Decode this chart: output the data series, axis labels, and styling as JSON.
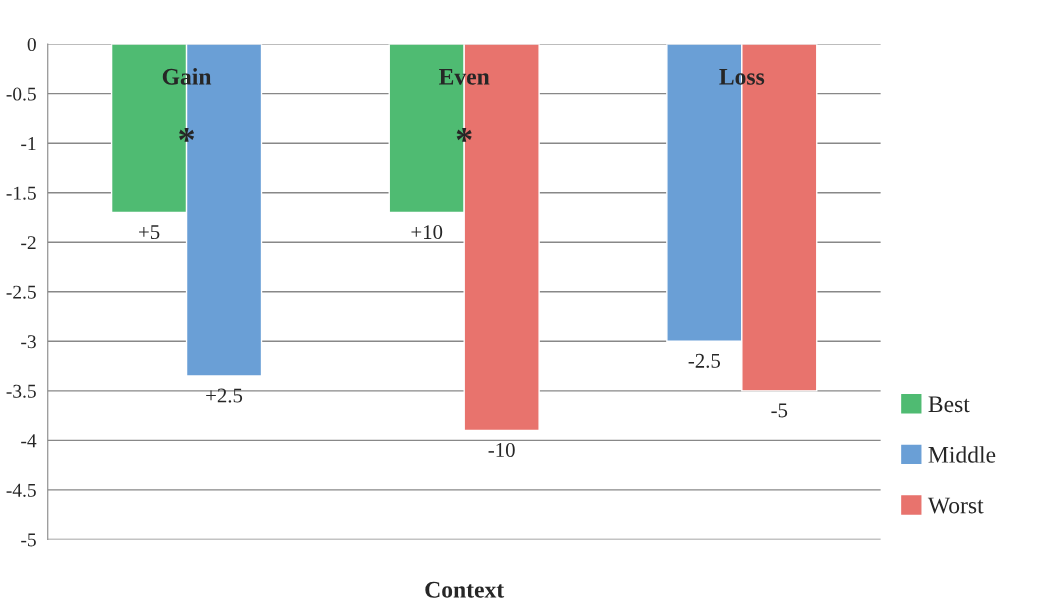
{
  "chart_data": {
    "type": "bar",
    "xlabel": "Context",
    "categories": [
      "Gain",
      "Even",
      "Loss"
    ],
    "series": [
      {
        "name": "Best",
        "color": "#4fbb72",
        "values": [
          -1.7,
          -1.7,
          null
        ]
      },
      {
        "name": "Middle",
        "color": "#6a9fd6",
        "values": [
          -3.35,
          null,
          -3.0
        ]
      },
      {
        "name": "Worst",
        "color": "#e8736d",
        "values": [
          null,
          -3.9,
          -3.5
        ]
      }
    ],
    "ylim": [
      -5,
      0
    ],
    "yticks": [
      0,
      -0.5,
      -1,
      -1.5,
      -2,
      -2.5,
      -3,
      -3.5,
      -4,
      -4.5,
      -5
    ],
    "grid": "y",
    "legend": "bottom right",
    "annotations": [
      {
        "text": "*",
        "x": "Gain",
        "y": -1
      },
      {
        "text": "*",
        "x": "Even",
        "y": -1
      },
      {
        "text": "+5",
        "x": "Gain",
        "y": -1.7
      },
      {
        "text": "+2.5",
        "x": "Gain",
        "y": -3.35
      },
      {
        "text": "+10",
        "x": "Even",
        "y": -1.7
      },
      {
        "text": "-10",
        "x": "Even",
        "y": -3.9
      },
      {
        "text": "-2.5",
        "x": "Loss",
        "y": -3.0
      },
      {
        "text": "-5",
        "x": "Loss",
        "y": -3.5
      }
    ]
  }
}
